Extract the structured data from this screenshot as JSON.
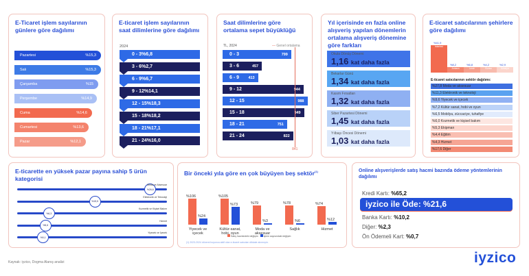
{
  "days": {
    "title": "E-Ticaret işlem sayılarının günlere göre dağılımı",
    "items": [
      {
        "label": "Pazartesi",
        "value": "%15,3",
        "color": "#2350d8",
        "w": 126
      },
      {
        "label": "Salı",
        "value": "%15,3",
        "color": "#3d7be6",
        "w": 126
      },
      {
        "label": "Çarşamba",
        "value": "%15",
        "color": "#7f9cf0",
        "w": 122
      },
      {
        "label": "Perşembe",
        "value": "%14,9",
        "color": "#a9c0f5",
        "w": 120
      },
      {
        "label": "Cuma",
        "value": "%14,6",
        "color": "#f26a4f",
        "w": 113
      },
      {
        "label": "Cumartesi",
        "value": "%13,6",
        "color": "#f4836c",
        "w": 108
      },
      {
        "label": "Pazar",
        "value": "%12,1",
        "color": "#f59c8a",
        "w": 104
      }
    ]
  },
  "hours": {
    "title": "E-ticaret işlem sayılarının saat dilimlerine göre dağılımı",
    "year": "2024",
    "items": [
      {
        "label": "0 - 3",
        "value": "%6,8"
      },
      {
        "label": "3 - 6",
        "value": "%2,7"
      },
      {
        "label": "6 - 9",
        "value": "%6,7"
      },
      {
        "label": "9 - 12",
        "value": "%14,1"
      },
      {
        "label": "12 - 15",
        "value": "%18,3"
      },
      {
        "label": "15 - 18",
        "value": "%18,2"
      },
      {
        "label": "18 - 21",
        "value": "%17,1"
      },
      {
        "label": "21 - 24",
        "value": "%16,0"
      }
    ]
  },
  "basket": {
    "title": "Saat dilimlerine göre ortalama sepet büyüklüğü",
    "unit": "TL, 2024",
    "legend": "Genel ortalama",
    "average": 841,
    "items": [
      {
        "label": "0 - 3",
        "value": 799
      },
      {
        "label": "3 - 6",
        "value": 457
      },
      {
        "label": "6 - 9",
        "value": 413
      },
      {
        "label": "9 - 12",
        "value": 944
      },
      {
        "label": "12 - 15",
        "value": 988
      },
      {
        "label": "15 - 18",
        "value": 949
      },
      {
        "label": "18 - 21",
        "value": 751
      },
      {
        "label": "21 - 24",
        "value": 822
      }
    ]
  },
  "periods": {
    "title": "Yıl içerisinde en fazla online alışveriş yapılan dönemlerin ortalama alışveriş dönemine göre farkları",
    "suffix": "kat daha fazla",
    "items": [
      {
        "name": "Okula Dönüş Dönemi",
        "value": "1,16",
        "color": "#3f74e8"
      },
      {
        "name": "Bekarlar Günü",
        "value": "1,34",
        "color": "#58a6f2"
      },
      {
        "name": "Kasım Fırsatları",
        "value": "1,32",
        "color": "#8fb0f2"
      },
      {
        "name": "Siber Pazartesi Dönemi",
        "value": "1,45",
        "color": "#b9d2f8"
      },
      {
        "name": "Yılbaşı Öncesi Dönemi",
        "value": "1,03",
        "color": "#dde9fb"
      }
    ]
  },
  "cities": {
    "title": "E-ticaret satıcılarının şehirlere göre dağılımı",
    "items": [
      {
        "name": "İstanbul",
        "value": "%41,9",
        "v": 41.9
      },
      {
        "name": "Ankara",
        "value": "%8,2",
        "v": 8.2
      },
      {
        "name": "İzmir",
        "value": "%6,8",
        "v": 6.8
      },
      {
        "name": "Bursa",
        "value": "%4,2",
        "v": 4.2
      },
      {
        "name": "Antalya",
        "value": "%2,9",
        "v": 2.9
      }
    ],
    "sector_title": "E-ticaret satıcılarının sektör dağılımı:",
    "sectors": [
      {
        "label": "%27,8 Moda ve aksesuar",
        "color": "#3e6fe0"
      },
      {
        "label": "%11,3 Elektronik ve teknoloji",
        "color": "#5aa2f0"
      },
      {
        "label": "%9,6 Yiyecek ve içecek",
        "color": "#90b1f3"
      },
      {
        "label": "%7,2 Kültür sanat, hobi ve oyun",
        "color": "#bcd3f8"
      },
      {
        "label": "%6,5 Mobilya, züccaciye, tuhafiye",
        "color": "#e1ebfc"
      },
      {
        "label": "%6,0 Kozmetik ve kişisel bakım",
        "color": "#fde6e1"
      },
      {
        "label": "%5,3 Ekipman",
        "color": "#fcd5cc"
      },
      {
        "label": "%4,4 Eğitim",
        "color": "#f9beb1"
      },
      {
        "label": "%4,3 Hizmet",
        "color": "#f6a594"
      },
      {
        "label": "%17,6 Diğer",
        "color": "#f38a74"
      }
    ]
  },
  "categories": {
    "title": "E-ticarette en yüksek pazar payına sahip 5 ürün kategorisi",
    "items": [
      {
        "name": "Moda ve Aksesuar",
        "value": "%26,6",
        "v": 26.6
      },
      {
        "name": "Elektronik ve Teknoloji",
        "value": "%15,5",
        "v": 15.5
      },
      {
        "name": "Kozmetik ve Kişisel Bakım",
        "value": "%6,3",
        "v": 6.3
      },
      {
        "name": "Hizmet",
        "value": "%5,6",
        "v": 5.6
      },
      {
        "name": "Yiyecek ve İçecek",
        "value": "%5,1",
        "v": 5.1
      }
    ]
  },
  "growth": {
    "title": "Bir önceki yıla göre en çok büyüyen beş sektör",
    "sup": "(1)",
    "legend_a": "Satış hacmindeki değişim",
    "legend_b": "İşlem sayısındaki değişim",
    "note": "(1) 2023-2024 dönemi boyunca aktif olan e-ticaret satıcıları dikkate alınmıştır.",
    "items": [
      {
        "name": "Yiyecek ve içecek",
        "a": 106,
        "b": 24,
        "al": "%106",
        "bl": "%24"
      },
      {
        "name": "Kültür-sanat, hobi, oyun",
        "a": 105,
        "b": 73,
        "al": "%105",
        "bl": "%73"
      },
      {
        "name": "Moda ve aksesuar",
        "a": 79,
        "b": 3,
        "al": "%79",
        "bl": "%3"
      },
      {
        "name": "Sağlık",
        "a": 78,
        "b": 6,
        "al": "%78",
        "bl": "%6"
      },
      {
        "name": "Hizmet",
        "a": 74,
        "b": 12,
        "al": "%74",
        "bl": "%12"
      }
    ],
    "colors": {
      "a": "#f26a4f",
      "b": "#2350d8"
    }
  },
  "payments": {
    "title": "Online alışverişlerde satış hacmi bazında ödeme yöntemlerinin dağılımı",
    "credit_label": "Kredi Kartı:",
    "credit": "%65,2",
    "iyzico": "iyzico ile Öde: %21,6",
    "bank_label": "Banka Kartı:",
    "bank": "%10,2",
    "other_label": "Diğer:",
    "other": "%2,3",
    "prepaid_label": "Ön Ödemeli Kart:",
    "prepaid": "%0,7"
  },
  "footer": {
    "source": "Kaynak: iyzico, Dogma Alanış analizi",
    "logo": "iyzico"
  }
}
